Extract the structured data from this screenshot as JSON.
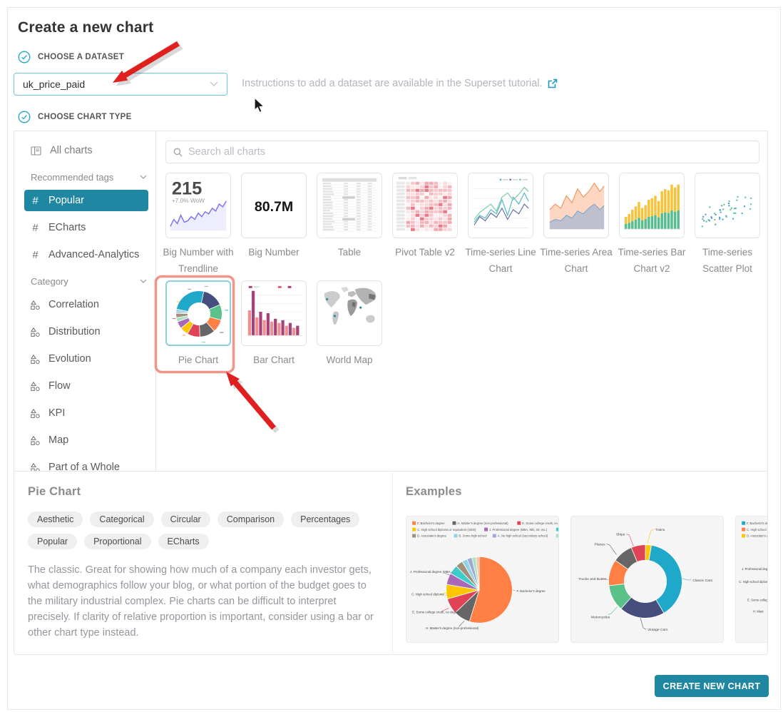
{
  "title": "Create a new chart",
  "dataset_step": {
    "label": "CHOOSE A DATASET",
    "selected_dataset": "uk_price_paid",
    "instructions_text": "Instructions to add a dataset are available in the Superset tutorial."
  },
  "chart_type_step": {
    "label": "CHOOSE CHART TYPE"
  },
  "sidebar": {
    "all_charts_label": "All charts",
    "sections": [
      {
        "label": "Recommended tags",
        "icon": "hash",
        "items": [
          {
            "label": "Popular",
            "selected": true
          },
          {
            "label": "ECharts",
            "selected": false
          },
          {
            "label": "Advanced-Analytics",
            "selected": false
          }
        ]
      },
      {
        "label": "Category",
        "icon": "category",
        "items": [
          {
            "label": "Correlation",
            "selected": false
          },
          {
            "label": "Distribution",
            "selected": false
          },
          {
            "label": "Evolution",
            "selected": false
          },
          {
            "label": "Flow",
            "selected": false
          },
          {
            "label": "KPI",
            "selected": false
          },
          {
            "label": "Map",
            "selected": false
          },
          {
            "label": "Part of a Whole",
            "selected": false
          }
        ]
      }
    ]
  },
  "search": {
    "placeholder": "Search all charts"
  },
  "gallery": {
    "cards": [
      {
        "label": "Big Number with Trendline",
        "thumb": "big_number_trendline",
        "selected": false
      },
      {
        "label": "Big Number",
        "thumb": "big_number",
        "selected": false
      },
      {
        "label": "Table",
        "thumb": "table",
        "selected": false
      },
      {
        "label": "Pivot Table v2",
        "thumb": "pivot",
        "selected": false
      },
      {
        "label": "Time-series Line Chart",
        "thumb": "line",
        "selected": false
      },
      {
        "label": "Time-series Area Chart",
        "thumb": "area",
        "selected": false
      },
      {
        "label": "Time-series Bar Chart v2",
        "thumb": "bar2",
        "selected": false
      },
      {
        "label": "Time-series Scatter Plot",
        "thumb": "scatter",
        "selected": false
      },
      {
        "label": "Pie Chart",
        "thumb": "pie",
        "selected": true
      },
      {
        "label": "Bar Chart",
        "thumb": "bar",
        "selected": false
      },
      {
        "label": "World Map",
        "thumb": "world_map",
        "selected": false
      }
    ],
    "thumb_text": {
      "big_number_trendline": {
        "value": "215",
        "delta": "+7.0% WoW"
      },
      "big_number": {
        "value": "80.7M"
      }
    }
  },
  "details": {
    "title": "Pie Chart",
    "tags": [
      "Aesthetic",
      "Categorical",
      "Circular",
      "Comparison",
      "Percentages",
      "Popular",
      "Proportional",
      "ECharts"
    ],
    "description": "The classic. Great for showing how much of a company each investor gets, what demographics follow your blog, or what portion of the budget goes to the military industrial complex. Pie charts can be difficult to interpret precisely. If clarity of relative proportion is important, consider using a bar or other chart type instead."
  },
  "examples": {
    "title": "Examples",
    "pie_example": {
      "legend": [
        "F. Bachelor's degree",
        "H. Master's degree (non-professional)",
        "E. Some college credit, no degree",
        "C. High school diploma or equivalent (GED)",
        "J. Professional degree (MBA, MD, JD, etc.)",
        "G. Trade, technical, or vocational training",
        "D. Associate's degree",
        "B. Some high school",
        "A. No high school (secondary school)",
        "<NULL>",
        "I. Ph.D."
      ],
      "visible_labels": [
        "F. Bachelor's degree",
        "H. Master's degree (non-professional)",
        "E. Some college credit, no degree",
        "C. High school diploma ...",
        "J. Professional degree (MBA..."
      ]
    },
    "donut_example": {
      "labels": [
        "Trains",
        "Ships",
        "Planes",
        "Trucks and Buses",
        "Motorcycles",
        "Vintage Cars",
        "Classic Cars"
      ]
    },
    "clipped_example": {
      "legend": [
        "F. Bachelor's degree",
        "C. High school diplo",
        "D. Associate's degre"
      ],
      "visible_labels": [
        "J. Professional degree (M",
        "C. High school diploma or eq",
        "E. Some college",
        "H. Mast"
      ]
    }
  },
  "create_button_label": "CREATE NEW CHART",
  "colors": {
    "accent_teal": "#1f87a1",
    "icon_cyan": "#20a7c9",
    "annotation_red": "#e01f1f",
    "annotation_salmon": "#f2887c"
  }
}
